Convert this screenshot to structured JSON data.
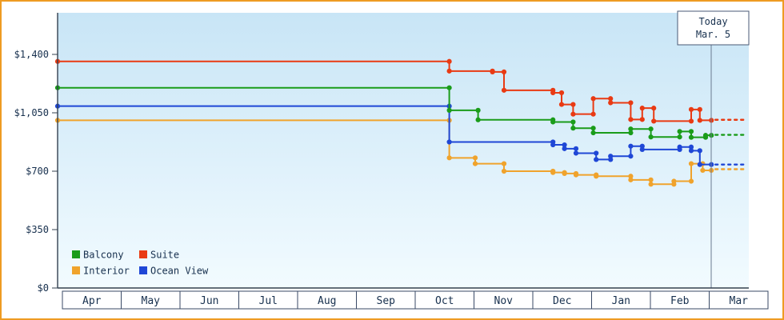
{
  "today_marker": {
    "label": "Today",
    "date": "Mar. 5",
    "month_position": 11.35
  },
  "chart_data": {
    "type": "line",
    "title": "",
    "xlabel": "",
    "ylabel": "",
    "x_categories": [
      "Apr",
      "May",
      "Jun",
      "Jul",
      "Aug",
      "Sep",
      "Oct",
      "Nov",
      "Dec",
      "Jan",
      "Feb",
      "Mar"
    ],
    "y_tick_values": [
      0,
      350,
      700,
      1050,
      1400
    ],
    "y_tick_labels": [
      "$0",
      "$350",
      "$700",
      "$1,050",
      "$1,400"
    ],
    "ylim": [
      0,
      1400
    ],
    "grid": false,
    "legend_position": "bottom-left",
    "legend_order": [
      "Balcony",
      "Suite",
      "Interior",
      "Ocean View"
    ],
    "today": {
      "label": "Today",
      "date": "Mar. 5",
      "month_position": 11.35
    },
    "series": [
      {
        "name": "Interior",
        "color": "#f0a32c",
        "points": [
          [
            0,
            1005
          ],
          [
            6.8,
            780
          ],
          [
            7.25,
            745
          ],
          [
            7.75,
            700
          ],
          [
            8.6,
            692
          ],
          [
            8.8,
            686
          ],
          [
            9.0,
            678
          ],
          [
            9.35,
            670
          ],
          [
            9.95,
            648
          ],
          [
            10.3,
            622
          ],
          [
            10.7,
            640
          ],
          [
            11.0,
            745
          ],
          [
            11.2,
            705
          ]
        ],
        "projection": 712
      },
      {
        "name": "Ocean View",
        "color": "#1f47d6",
        "points": [
          [
            0,
            1090
          ],
          [
            6.8,
            875
          ],
          [
            8.6,
            858
          ],
          [
            8.8,
            835
          ],
          [
            9.0,
            808
          ],
          [
            9.35,
            770
          ],
          [
            9.6,
            790
          ],
          [
            9.95,
            850
          ],
          [
            10.15,
            830
          ],
          [
            10.8,
            845
          ],
          [
            11.0,
            823
          ],
          [
            11.15,
            740
          ]
        ],
        "projection": 740
      },
      {
        "name": "Balcony",
        "color": "#1a9c1a",
        "points": [
          [
            0,
            1200
          ],
          [
            6.8,
            1065
          ],
          [
            7.3,
            1008
          ],
          [
            8.6,
            995
          ],
          [
            8.95,
            958
          ],
          [
            9.3,
            930
          ],
          [
            9.95,
            953
          ],
          [
            10.3,
            905
          ],
          [
            10.8,
            938
          ],
          [
            11.0,
            903
          ],
          [
            11.25,
            915
          ]
        ],
        "projection": 918
      },
      {
        "name": "Suite",
        "color": "#e93a13",
        "points": [
          [
            0,
            1358
          ],
          [
            6.8,
            1300
          ],
          [
            7.55,
            1295
          ],
          [
            7.75,
            1185
          ],
          [
            8.6,
            1170
          ],
          [
            8.75,
            1100
          ],
          [
            8.95,
            1042
          ],
          [
            9.3,
            1135
          ],
          [
            9.6,
            1110
          ],
          [
            9.95,
            1010
          ],
          [
            10.15,
            1078
          ],
          [
            10.35,
            1000
          ],
          [
            11.0,
            1070
          ],
          [
            11.15,
            1005
          ]
        ],
        "projection": 1008
      }
    ]
  }
}
